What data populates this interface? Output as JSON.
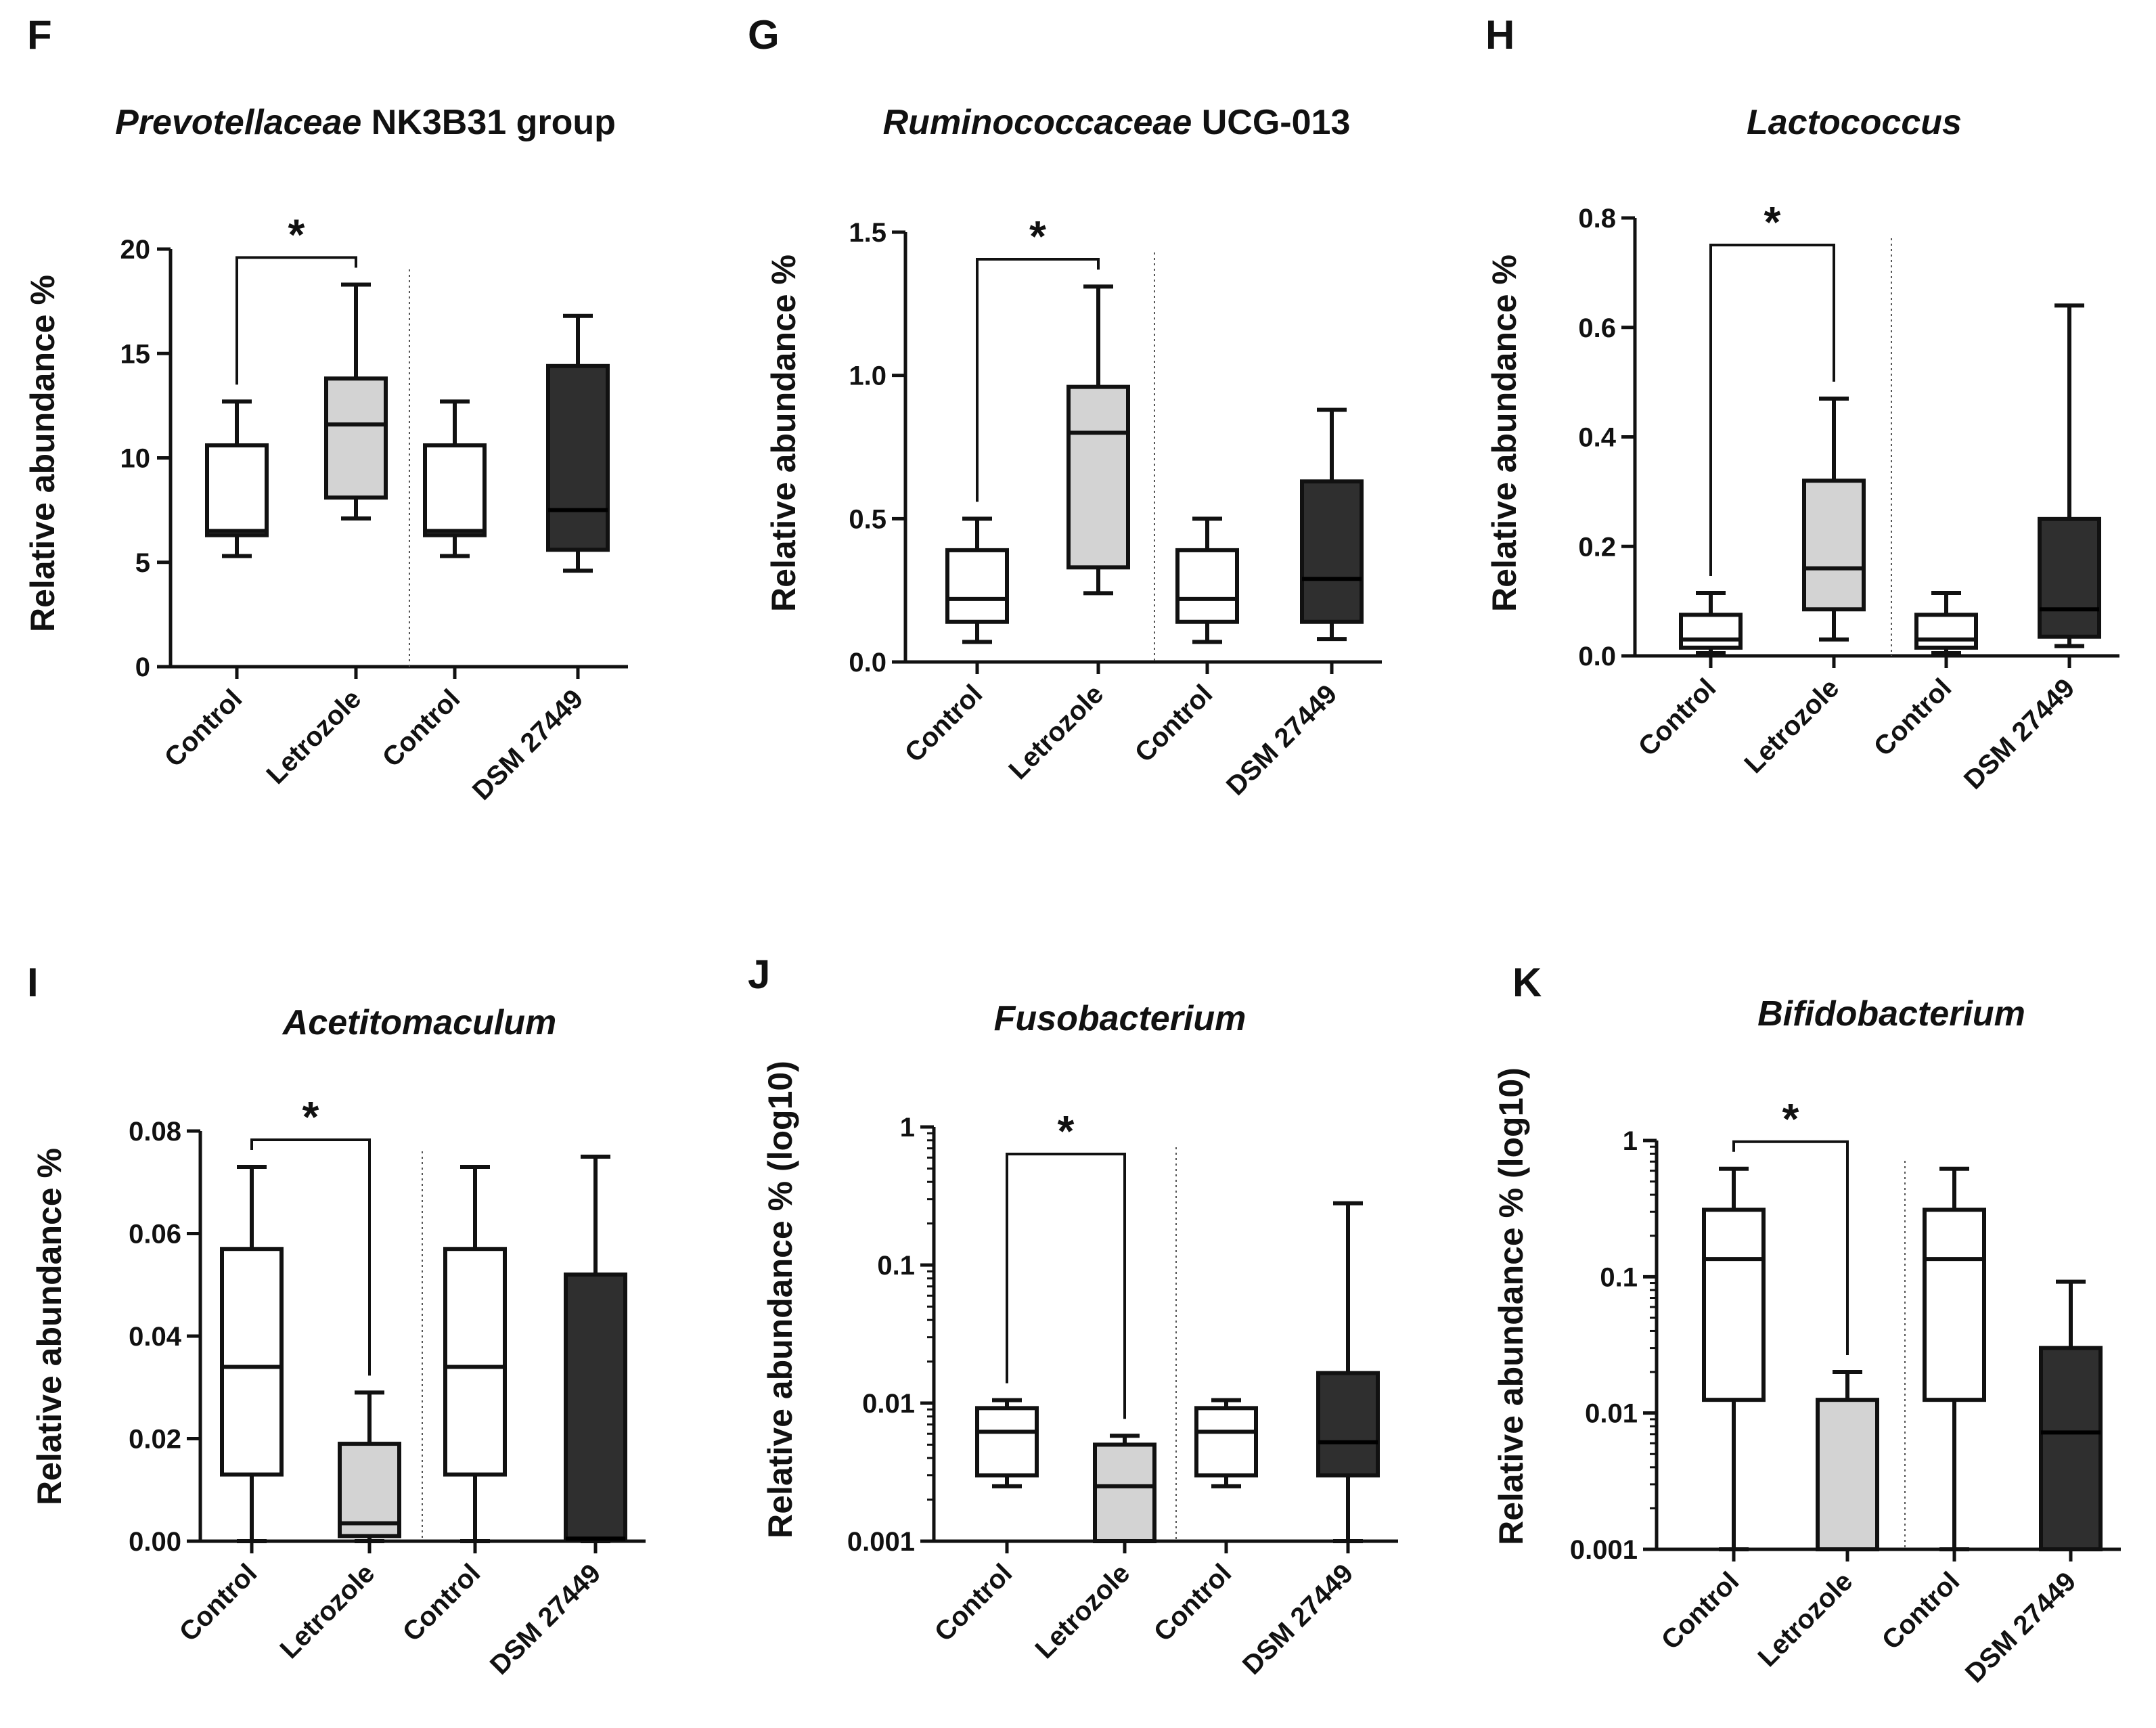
{
  "figure": {
    "colors": {
      "control": "#ffffff",
      "letrozole": "#d3d3d3",
      "dsm": "#2f2f2f",
      "stroke": "#111111",
      "divider": "#555555"
    }
  },
  "chart_data": [
    {
      "panel": "F",
      "type": "box",
      "title_italic": "Prevotellaceae",
      "title_rest": " NK3B31 group",
      "ylabel": "Relative abundance %",
      "scale": "linear",
      "ylim": [
        0,
        20
      ],
      "yticks": [
        0,
        5,
        10,
        15,
        20
      ],
      "ytick_labels": [
        "0",
        "5",
        "10",
        "15",
        "20"
      ],
      "categories": [
        "Control",
        "Letrozole",
        "Control",
        "DSM 27449"
      ],
      "groups": [
        {
          "name": "Control",
          "color": "control",
          "min": 5.3,
          "q1": 6.3,
          "median": 6.5,
          "q3": 10.6,
          "max": 12.7
        },
        {
          "name": "Letrozole",
          "color": "letrozole",
          "min": 7.1,
          "q1": 8.1,
          "median": 11.6,
          "q3": 13.8,
          "max": 18.3
        },
        {
          "name": "Control",
          "color": "control",
          "min": 5.3,
          "q1": 6.3,
          "median": 6.5,
          "q3": 10.6,
          "max": 12.7
        },
        {
          "name": "DSM 27449",
          "color": "dsm",
          "min": 4.6,
          "q1": 5.6,
          "median": 7.5,
          "q3": 14.4,
          "max": 16.8
        }
      ],
      "significance": {
        "from": 0,
        "to": 1,
        "label": "*"
      }
    },
    {
      "panel": "G",
      "type": "box",
      "title_italic": "Ruminococcaceae",
      "title_rest": " UCG-013",
      "ylabel": "Relative abundance %",
      "scale": "linear",
      "ylim": [
        0,
        1.5
      ],
      "yticks": [
        0,
        0.5,
        1.0,
        1.5
      ],
      "ytick_labels": [
        "0.0",
        "0.5",
        "1.0",
        "1.5"
      ],
      "categories": [
        "Control",
        "Letrozole",
        "Control",
        "DSM 27449"
      ],
      "groups": [
        {
          "name": "Control",
          "color": "control",
          "min": 0.07,
          "q1": 0.14,
          "median": 0.22,
          "q3": 0.39,
          "max": 0.5
        },
        {
          "name": "Letrozole",
          "color": "letrozole",
          "min": 0.24,
          "q1": 0.33,
          "median": 0.8,
          "q3": 0.96,
          "max": 1.31
        },
        {
          "name": "Control",
          "color": "control",
          "min": 0.07,
          "q1": 0.14,
          "median": 0.22,
          "q3": 0.39,
          "max": 0.5
        },
        {
          "name": "DSM 27449",
          "color": "dsm",
          "min": 0.08,
          "q1": 0.14,
          "median": 0.29,
          "q3": 0.63,
          "max": 0.88
        }
      ],
      "significance": {
        "from": 0,
        "to": 1,
        "label": "*"
      }
    },
    {
      "panel": "H",
      "type": "box",
      "title_italic": "Lactococcus",
      "title_rest": "",
      "ylabel": "Relative abundance %",
      "scale": "linear",
      "ylim": [
        0,
        0.8
      ],
      "yticks": [
        0,
        0.2,
        0.4,
        0.6,
        0.8
      ],
      "ytick_labels": [
        "0.0",
        "0.2",
        "0.4",
        "0.6",
        "0.8"
      ],
      "categories": [
        "Control",
        "Letrozole",
        "Control",
        "DSM 27449"
      ],
      "groups": [
        {
          "name": "Control",
          "color": "control",
          "min": 0.005,
          "q1": 0.015,
          "median": 0.03,
          "q3": 0.075,
          "max": 0.115
        },
        {
          "name": "Letrozole",
          "color": "letrozole",
          "min": 0.03,
          "q1": 0.085,
          "median": 0.16,
          "q3": 0.32,
          "max": 0.47
        },
        {
          "name": "Control",
          "color": "control",
          "min": 0.005,
          "q1": 0.015,
          "median": 0.03,
          "q3": 0.075,
          "max": 0.115
        },
        {
          "name": "DSM 27449",
          "color": "dsm",
          "min": 0.018,
          "q1": 0.035,
          "median": 0.085,
          "q3": 0.25,
          "max": 0.64
        }
      ],
      "significance": {
        "from": 0,
        "to": 1,
        "label": "*"
      }
    },
    {
      "panel": "I",
      "type": "box",
      "title_italic": "Acetitomaculum",
      "title_rest": "",
      "ylabel": "Relative abundance %",
      "scale": "linear",
      "ylim": [
        0,
        0.08
      ],
      "yticks": [
        0,
        0.02,
        0.04,
        0.06,
        0.08
      ],
      "ytick_labels": [
        "0.00",
        "0.02",
        "0.04",
        "0.06",
        "0.08"
      ],
      "categories": [
        "Control",
        "Letrozole",
        "Control",
        "DSM 27449"
      ],
      "groups": [
        {
          "name": "Control",
          "color": "control",
          "min": 0.0,
          "q1": 0.013,
          "median": 0.034,
          "q3": 0.057,
          "max": 0.073
        },
        {
          "name": "Letrozole",
          "color": "letrozole",
          "min": 0.0,
          "q1": 0.001,
          "median": 0.0035,
          "q3": 0.019,
          "max": 0.029
        },
        {
          "name": "Control",
          "color": "control",
          "min": 0.0,
          "q1": 0.013,
          "median": 0.034,
          "q3": 0.057,
          "max": 0.073
        },
        {
          "name": "DSM 27449",
          "color": "dsm",
          "min": 0.0,
          "q1": 0.0005,
          "median": 0.0005,
          "q3": 0.052,
          "max": 0.075
        }
      ],
      "significance": {
        "from": 0,
        "to": 1,
        "label": "*"
      }
    },
    {
      "panel": "J",
      "type": "box",
      "title_italic": "Fusobacterium",
      "title_rest": "",
      "ylabel": "Relative abundance % (log10)",
      "scale": "log",
      "ylim": [
        0.001,
        1
      ],
      "yticks": [
        0.001,
        0.01,
        0.1,
        1
      ],
      "ytick_labels": [
        "0.001",
        "0.01",
        "0.1",
        "1"
      ],
      "categories": [
        "Control",
        "Letrozole",
        "Control",
        "DSM 27449"
      ],
      "groups": [
        {
          "name": "Control",
          "color": "control",
          "min": 0.0025,
          "q1": 0.003,
          "median": 0.0062,
          "q3": 0.0092,
          "max": 0.0105
        },
        {
          "name": "Letrozole",
          "color": "letrozole",
          "min": 0.001,
          "q1": 0.001,
          "median": 0.0025,
          "q3": 0.005,
          "max": 0.0058
        },
        {
          "name": "Control",
          "color": "control",
          "min": 0.0025,
          "q1": 0.003,
          "median": 0.0062,
          "q3": 0.0092,
          "max": 0.0105
        },
        {
          "name": "DSM 27449",
          "color": "dsm",
          "min": 0.001,
          "q1": 0.003,
          "median": 0.0052,
          "q3": 0.0165,
          "max": 0.28
        }
      ],
      "significance": {
        "from": 0,
        "to": 1,
        "label": "*"
      }
    },
    {
      "panel": "K",
      "type": "box",
      "title_italic": "Bifidobacterium",
      "title_rest": "",
      "ylabel": "Relative abundance % (log10)",
      "scale": "log",
      "ylim": [
        0.001,
        1
      ],
      "yticks": [
        0.001,
        0.01,
        0.1,
        1
      ],
      "ytick_labels": [
        "0.001",
        "0.01",
        "0.1",
        "1"
      ],
      "categories": [
        "Control",
        "Letrozole",
        "Control",
        "DSM 27449"
      ],
      "groups": [
        {
          "name": "Control",
          "color": "control",
          "min": 0.001,
          "q1": 0.0125,
          "median": 0.135,
          "q3": 0.31,
          "max": 0.62
        },
        {
          "name": "Letrozole",
          "color": "letrozole",
          "min": 0.001,
          "q1": 0.001,
          "median": 0.001,
          "q3": 0.0125,
          "max": 0.02
        },
        {
          "name": "Control",
          "color": "control",
          "min": 0.001,
          "q1": 0.0125,
          "median": 0.135,
          "q3": 0.31,
          "max": 0.62
        },
        {
          "name": "DSM 27449",
          "color": "dsm",
          "min": 0.001,
          "q1": 0.001,
          "median": 0.0072,
          "q3": 0.03,
          "max": 0.092
        }
      ],
      "significance": {
        "from": 0,
        "to": 1,
        "label": "*"
      }
    }
  ]
}
